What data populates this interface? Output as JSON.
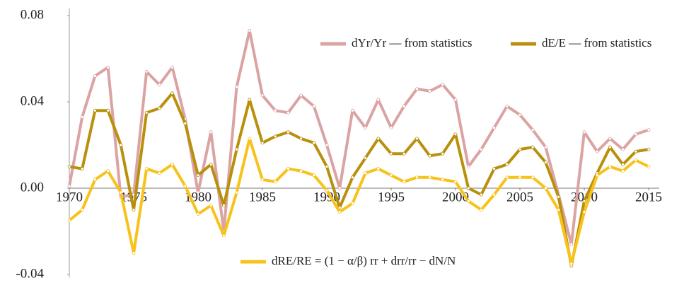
{
  "chart_data": {
    "type": "line",
    "x": [
      1970,
      1971,
      1972,
      1973,
      1974,
      1975,
      1976,
      1977,
      1978,
      1979,
      1980,
      1981,
      1982,
      1983,
      1984,
      1985,
      1986,
      1987,
      1988,
      1989,
      1990,
      1991,
      1992,
      1993,
      1994,
      1995,
      1996,
      1997,
      1998,
      1999,
      2000,
      2001,
      2002,
      2003,
      2004,
      2005,
      2006,
      2007,
      2008,
      2009,
      2010,
      2011,
      2012,
      2013,
      2014,
      2015
    ],
    "series": [
      {
        "name": "dYr/Yr — from statistics",
        "color": "#dba3a3",
        "values": [
          0.001,
          0.033,
          0.052,
          0.056,
          -0.004,
          -0.003,
          0.054,
          0.048,
          0.056,
          0.032,
          -0.002,
          0.026,
          -0.02,
          0.047,
          0.073,
          0.043,
          0.036,
          0.035,
          0.043,
          0.038,
          0.02,
          0.0,
          0.036,
          0.028,
          0.041,
          0.028,
          0.038,
          0.046,
          0.045,
          0.048,
          0.041,
          0.01,
          0.018,
          0.028,
          0.038,
          0.034,
          0.027,
          0.019,
          -0.003,
          -0.026,
          0.026,
          0.017,
          0.023,
          0.018,
          0.025,
          0.027
        ]
      },
      {
        "name": "dE/E — from statistics",
        "color": "#b8900c",
        "values": [
          0.01,
          0.009,
          0.036,
          0.036,
          0.02,
          -0.01,
          0.035,
          0.037,
          0.044,
          0.03,
          0.006,
          0.011,
          -0.008,
          0.018,
          0.041,
          0.021,
          0.024,
          0.026,
          0.023,
          0.021,
          0.01,
          -0.009,
          0.005,
          0.014,
          0.023,
          0.016,
          0.016,
          0.023,
          0.015,
          0.016,
          0.025,
          0.0,
          -0.003,
          0.009,
          0.011,
          0.018,
          0.019,
          0.012,
          -0.004,
          -0.036,
          -0.006,
          0.007,
          0.019,
          0.011,
          0.017,
          0.018
        ]
      },
      {
        "name": "dRE/RE = (1 − α/β) rr + drr/rr − dN/N",
        "color": "#f7c21a",
        "values": [
          -0.015,
          -0.01,
          0.004,
          0.008,
          -0.002,
          -0.03,
          0.009,
          0.007,
          0.011,
          0.001,
          -0.012,
          -0.008,
          -0.022,
          -0.002,
          0.023,
          0.004,
          0.003,
          0.009,
          0.008,
          0.006,
          -0.001,
          -0.011,
          -0.007,
          0.007,
          0.009,
          0.006,
          0.003,
          0.005,
          0.005,
          0.004,
          0.003,
          -0.006,
          -0.01,
          -0.003,
          0.005,
          0.005,
          0.005,
          0.0,
          -0.01,
          -0.035,
          -0.011,
          0.006,
          0.01,
          0.008,
          0.013,
          0.01
        ]
      }
    ],
    "xlim": [
      1970,
      2015
    ],
    "xticks": [
      1970,
      1975,
      1980,
      1985,
      1990,
      1995,
      2000,
      2005,
      2010,
      2015
    ],
    "ylim": [
      -0.04,
      0.08
    ],
    "yticks": [
      0.08,
      0.04,
      {
        "value": 0,
        "label": "0.00"
      },
      -0.04
    ]
  }
}
